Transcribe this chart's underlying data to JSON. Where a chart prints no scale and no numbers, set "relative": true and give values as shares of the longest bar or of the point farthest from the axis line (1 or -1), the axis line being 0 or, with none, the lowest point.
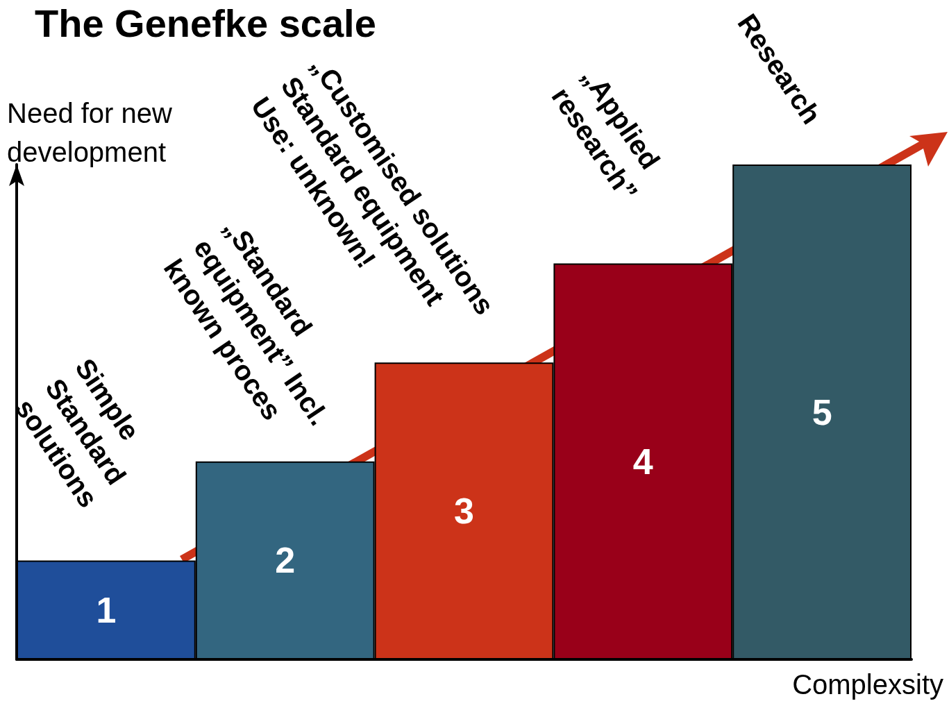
{
  "chart_data": {
    "type": "bar",
    "title": "The Genefke scale",
    "xlabel": "Complexsity",
    "ylabel": "Need for new development",
    "relative": true,
    "categories": [
      "1",
      "2",
      "3",
      "4",
      "5"
    ],
    "values": [
      0.2,
      0.4,
      0.6,
      0.8,
      1
    ],
    "colors": [
      "#1f4e9a",
      "#336680",
      "#cc3319",
      "#990019",
      "#335a66"
    ],
    "annotations": [
      "Simple\nStandard\nsolutions",
      "„Standard\nequipment” Incl.\nknown proces",
      "„Customised solutions\nStandard equipment\nUse: unknown!",
      "„Applied\nresearch”",
      "Research"
    ]
  }
}
